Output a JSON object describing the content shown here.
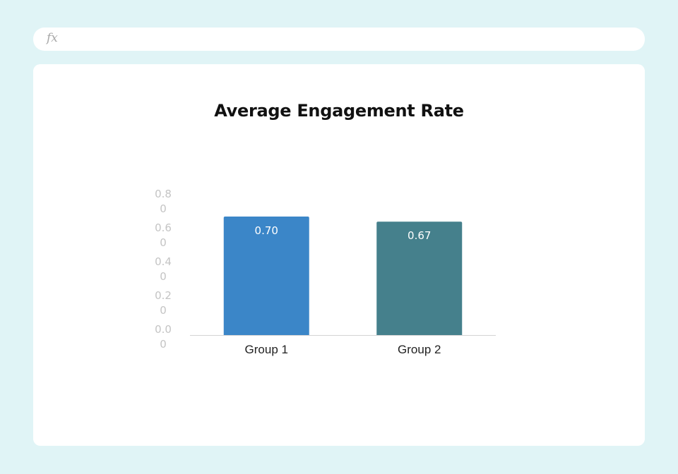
{
  "formula_bar": {
    "icon": "fx-icon",
    "icon_text": "fx",
    "value": ""
  },
  "chart_data": {
    "type": "bar",
    "title": "Average Engagement Rate",
    "xlabel": "",
    "ylabel": "",
    "categories": [
      "Group 1",
      "Group 2"
    ],
    "values": [
      0.7,
      0.67
    ],
    "data_labels": [
      "0.70",
      "0.67"
    ],
    "ylim": [
      0,
      0.8
    ],
    "yticks": [
      0.0,
      0.2,
      0.4,
      0.6,
      0.8
    ],
    "ytick_labels": [
      "0.00",
      "0.20",
      "0.40",
      "0.60",
      "0.80"
    ],
    "bar_colors": [
      "#3b86c8",
      "#45808c"
    ],
    "grid": false,
    "legend": "none"
  }
}
